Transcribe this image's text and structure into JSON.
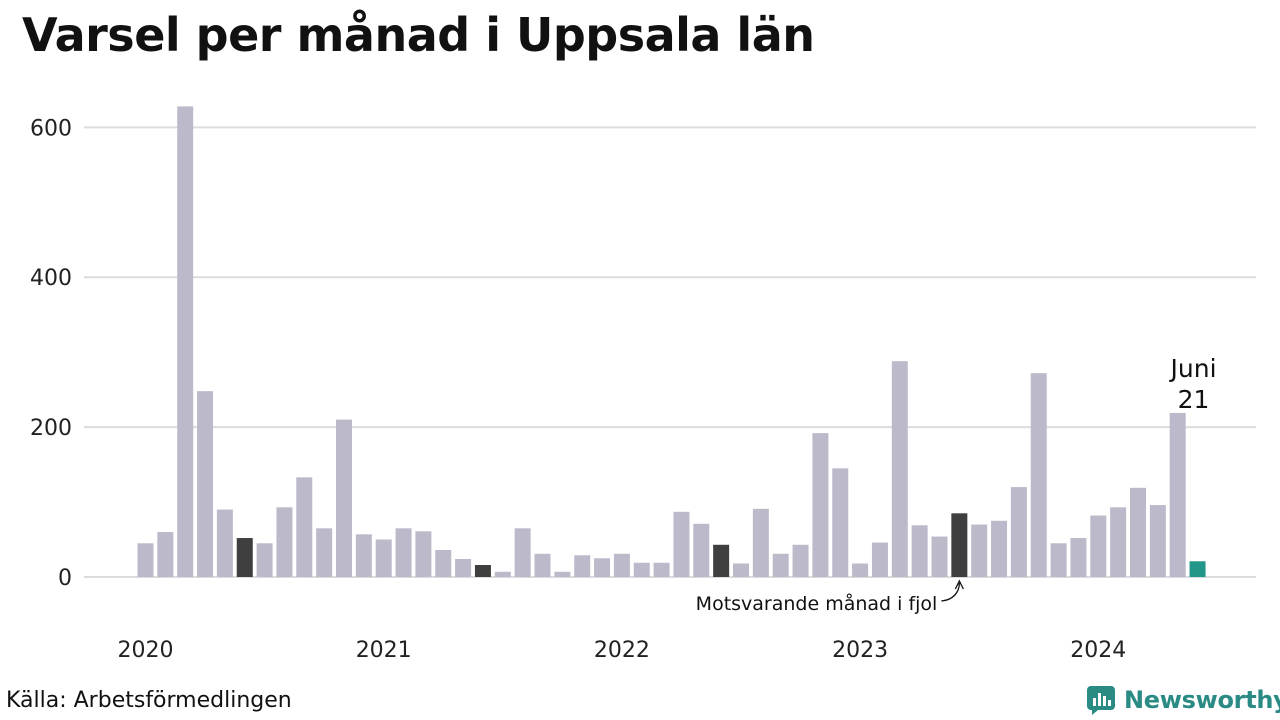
{
  "title": "Varsel per månad i Uppsala län",
  "source": "Källa: Arbetsförmedlingen",
  "brand": "Newsworthy",
  "colors": {
    "bar": "#bcbaca",
    "same_month_last_year": "#3f3f3f",
    "current": "#23968a",
    "grid": "#dcdcdc",
    "brand": "#2a8a84"
  },
  "chart_data": {
    "type": "bar",
    "title": "Varsel per månad i Uppsala län",
    "ylim": [
      0,
      630
    ],
    "yticks": [
      0,
      200,
      400,
      600
    ],
    "grid": true,
    "x_tick_labels": [
      "2020",
      "2021",
      "2022",
      "2023",
      "2024"
    ],
    "first_month": "2020-01",
    "values": [
      45,
      60,
      628,
      248,
      90,
      52,
      45,
      93,
      133,
      65,
      210,
      57,
      50,
      65,
      61,
      36,
      24,
      16,
      7,
      65,
      31,
      7,
      29,
      25,
      31,
      19,
      19,
      87,
      71,
      43,
      18,
      91,
      31,
      43,
      192,
      145,
      18,
      46,
      288,
      69,
      54,
      85,
      70,
      75,
      120,
      272,
      45,
      52,
      82,
      93,
      119,
      96,
      219,
      21
    ],
    "highlight_same_month_last_year": [
      5,
      17,
      29,
      41
    ],
    "highlight_current": 53,
    "current_label_month": "Juni",
    "current_label_value": "21",
    "annotation": "Motsvarande månad i fjol"
  }
}
